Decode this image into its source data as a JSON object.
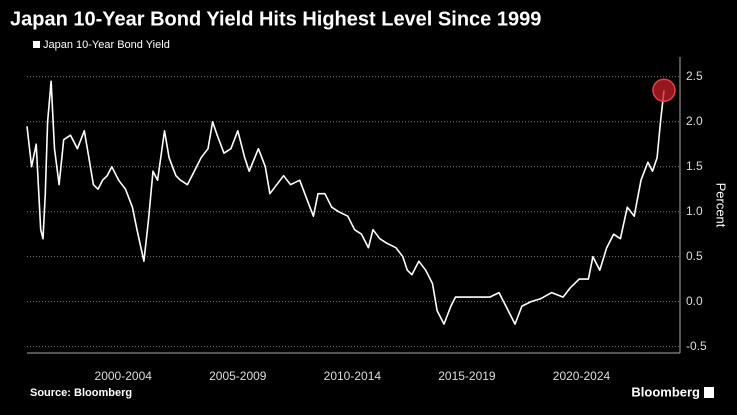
{
  "chart_data": {
    "type": "line",
    "title": "Japan 10-Year Bond Yield Hits Highest Level Since 1999",
    "y_label": "Percent",
    "source": "Source: Bloomberg",
    "brand": "Bloomberg",
    "xlim": [
      1998.3,
      2026.8
    ],
    "xticks": [
      {
        "value": 2002.5,
        "label": "2000-2004"
      },
      {
        "value": 2007.5,
        "label": "2005-2009"
      },
      {
        "value": 2012.5,
        "label": "2010-2014"
      },
      {
        "value": 2017.5,
        "label": "2015-2019"
      },
      {
        "value": 2022.5,
        "label": "2020-2024"
      }
    ],
    "ylim": [
      -0.56,
      2.72
    ],
    "yticks": [
      2.5,
      {
        "value": 2,
        "label": "2.0"
      },
      1.5,
      {
        "value": 1,
        "label": "1.0"
      },
      0.5,
      {
        "value": 0,
        "label": "0.0"
      },
      -0.5
    ],
    "grid": true,
    "legend": "top-left",
    "x": [
      1998.3,
      1998.5,
      1998.7,
      1998.9,
      1999.0,
      1999.1,
      1999.2,
      1999.35,
      1999.5,
      1999.7,
      1999.9,
      2000.2,
      2000.5,
      2000.8,
      2001.0,
      2001.2,
      2001.4,
      2001.6,
      2001.8,
      2002.0,
      2002.3,
      2002.6,
      2002.9,
      2003.1,
      2003.4,
      2003.6,
      2003.8,
      2004.0,
      2004.3,
      2004.5,
      2004.8,
      2005.0,
      2005.3,
      2005.6,
      2005.9,
      2006.2,
      2006.4,
      2006.6,
      2006.9,
      2007.2,
      2007.5,
      2007.8,
      2008.0,
      2008.4,
      2008.7,
      2008.9,
      2009.2,
      2009.5,
      2009.8,
      2010.2,
      2010.5,
      2010.8,
      2011.0,
      2011.3,
      2011.6,
      2011.9,
      2012.3,
      2012.6,
      2012.9,
      2013.2,
      2013.4,
      2013.7,
      2014.0,
      2014.4,
      2014.7,
      2014.9,
      2015.1,
      2015.4,
      2015.7,
      2016.0,
      2016.2,
      2016.5,
      2016.8,
      2017.0,
      2017.5,
      2018.0,
      2018.5,
      2018.9,
      2019.2,
      2019.6,
      2019.9,
      2020.3,
      2020.7,
      2021.2,
      2021.7,
      2022.0,
      2022.4,
      2022.8,
      2023.0,
      2023.3,
      2023.6,
      2023.9,
      2024.2,
      2024.5,
      2024.8,
      2025.1,
      2025.4,
      2025.6,
      2025.8,
      2025.95,
      2026.1
    ],
    "series": [
      {
        "name": "Japan 10-Year Bond Yield",
        "color": "#ffffff",
        "values": [
          1.95,
          1.5,
          1.75,
          0.8,
          0.7,
          1.2,
          2.0,
          2.45,
          1.7,
          1.3,
          1.8,
          1.85,
          1.7,
          1.9,
          1.6,
          1.3,
          1.25,
          1.35,
          1.4,
          1.5,
          1.35,
          1.25,
          1.05,
          0.8,
          0.45,
          0.9,
          1.45,
          1.35,
          1.9,
          1.6,
          1.4,
          1.35,
          1.3,
          1.45,
          1.6,
          1.7,
          2.0,
          1.85,
          1.65,
          1.7,
          1.9,
          1.6,
          1.45,
          1.7,
          1.5,
          1.2,
          1.3,
          1.4,
          1.3,
          1.35,
          1.15,
          0.95,
          1.2,
          1.2,
          1.05,
          1.0,
          0.95,
          0.8,
          0.75,
          0.6,
          0.8,
          0.7,
          0.65,
          0.6,
          0.5,
          0.35,
          0.3,
          0.45,
          0.35,
          0.2,
          -0.1,
          -0.25,
          -0.05,
          0.05,
          0.05,
          0.05,
          0.05,
          0.1,
          -0.05,
          -0.25,
          -0.05,
          0.0,
          0.03,
          0.1,
          0.05,
          0.15,
          0.25,
          0.25,
          0.5,
          0.35,
          0.6,
          0.75,
          0.7,
          1.05,
          0.95,
          1.35,
          1.55,
          1.45,
          1.6,
          2.0,
          2.35
        ]
      }
    ]
  }
}
